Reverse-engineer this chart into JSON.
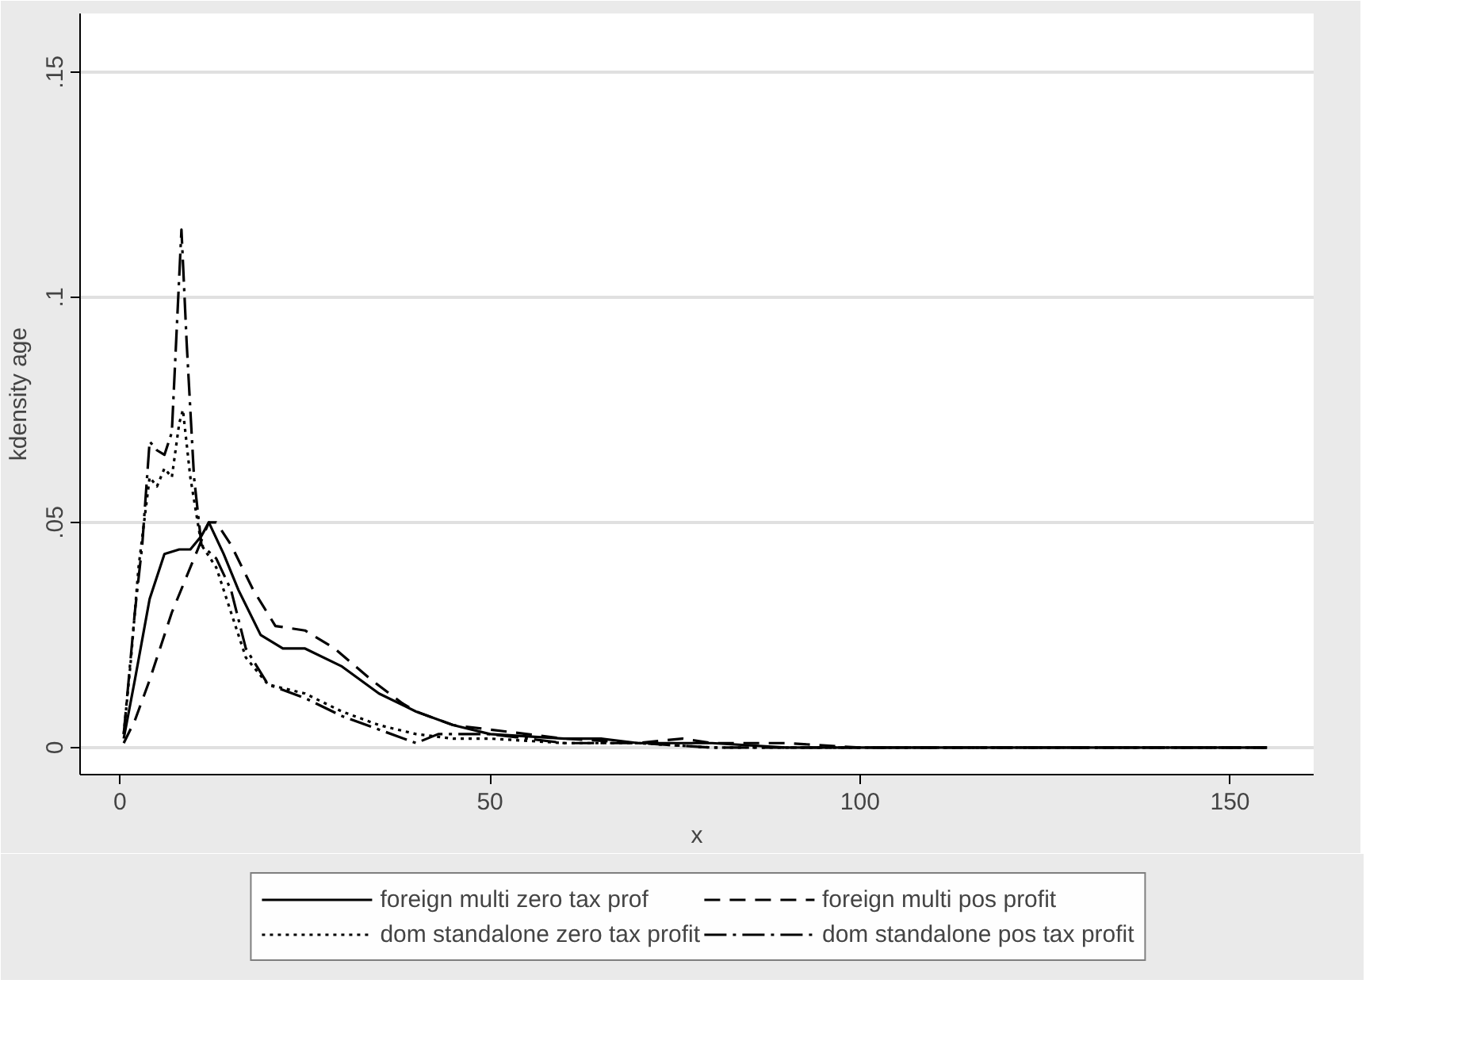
{
  "chart_data": {
    "type": "line",
    "xlabel": "x",
    "ylabel": "kdensity age",
    "xlim": [
      -5.4,
      161.3
    ],
    "ylim": [
      -0.006,
      0.163
    ],
    "xticks": [
      0,
      50,
      100,
      150
    ],
    "yticks": [
      0,
      {
        "value": 0.05,
        "label": ".05"
      },
      {
        "value": 0.1,
        "label": ".1"
      },
      {
        "value": 0.15,
        "label": ".15"
      }
    ],
    "grid": "y",
    "legend": "bottom",
    "series": [
      {
        "name": "foreign multi zero tax prof",
        "color": "#000000",
        "line_style": "solid",
        "x": [
          0.5,
          2,
          4,
          6,
          8,
          9.5,
          11,
          12,
          14,
          16,
          19,
          22,
          25,
          30,
          35,
          40,
          45,
          50,
          60,
          65,
          70,
          76,
          80,
          90,
          100,
          120,
          155
        ],
        "values": [
          0.002,
          0.015,
          0.033,
          0.043,
          0.044,
          0.044,
          0.047,
          0.05,
          0.043,
          0.035,
          0.025,
          0.022,
          0.022,
          0.018,
          0.012,
          0.008,
          0.005,
          0.003,
          0.002,
          0.002,
          0.001,
          0.001,
          0.001,
          0.0,
          0.0,
          0.0,
          0
        ]
      },
      {
        "name": "foreign multi pos profit",
        "color": "#000000",
        "line_style": "dashed",
        "x": [
          0.5,
          2,
          4,
          7,
          10,
          12,
          13,
          15,
          18,
          21,
          25,
          29,
          34,
          38,
          40,
          45,
          50,
          60,
          70,
          76,
          80,
          90,
          100,
          120,
          155
        ],
        "values": [
          0.001,
          0.006,
          0.015,
          0.03,
          0.042,
          0.05,
          0.05,
          0.045,
          0.035,
          0.027,
          0.026,
          0.022,
          0.015,
          0.01,
          0.008,
          0.005,
          0.004,
          0.002,
          0.001,
          0.002,
          0.001,
          0.001,
          0.0,
          0.0,
          0
        ]
      },
      {
        "name": "dom standalone zero tax profit",
        "color": "#000000",
        "line_style": "dotted",
        "x": [
          0.5,
          1.5,
          2.5,
          4,
          5,
          6,
          7,
          8,
          8.5,
          9.5,
          11,
          13,
          15,
          17,
          20,
          25,
          30,
          35,
          40,
          45,
          50,
          60,
          70,
          80,
          100,
          155
        ],
        "values": [
          0.003,
          0.02,
          0.04,
          0.06,
          0.058,
          0.062,
          0.06,
          0.072,
          0.075,
          0.06,
          0.045,
          0.04,
          0.03,
          0.02,
          0.014,
          0.012,
          0.008,
          0.005,
          0.003,
          0.002,
          0.002,
          0.001,
          0.001,
          0.0,
          0.0,
          0
        ]
      },
      {
        "name": "dom standalone pos tax profit",
        "color": "#000000",
        "line_style": "dashdot",
        "x": [
          0.5,
          2,
          3,
          4,
          5,
          6,
          7,
          8.3,
          9,
          10,
          11,
          13,
          15,
          17,
          20,
          25,
          30,
          35,
          40,
          43,
          50,
          60,
          70,
          80,
          100,
          155
        ],
        "values": [
          0.003,
          0.03,
          0.045,
          0.068,
          0.066,
          0.065,
          0.07,
          0.115,
          0.09,
          0.06,
          0.045,
          0.042,
          0.035,
          0.022,
          0.014,
          0.011,
          0.007,
          0.004,
          0.001,
          0.003,
          0.003,
          0.001,
          0.001,
          0.0,
          0.0,
          0
        ]
      }
    ]
  }
}
